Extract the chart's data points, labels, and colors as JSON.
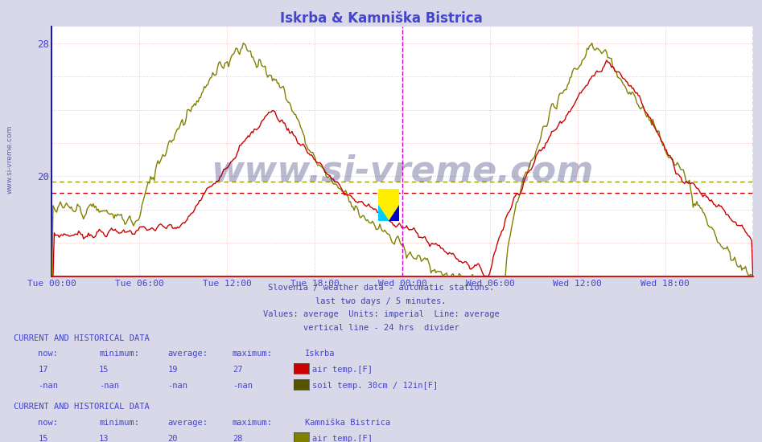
{
  "title": "Iskrba & Kamniška Bistrica",
  "title_color": "#4444cc",
  "bg_color": "#d8d8e8",
  "plot_bg_color": "#ffffff",
  "ylabel_color": "#4444cc",
  "xlabel_color": "#4444cc",
  "xtick_labels": [
    "Tue 00:00",
    "Tue 06:00",
    "Tue 12:00",
    "Tue 18:00",
    "Wed 00:00",
    "Wed 06:00",
    "Wed 12:00",
    "Wed 18:00"
  ],
  "iskrba_air_color": "#cc0000",
  "iskrba_soil_color": "#555500",
  "kamniska_air_color": "#808000",
  "kamniska_soil_color": "#888820",
  "avg_iskrba_color": "#cc0000",
  "avg_kamniska_color": "#999900",
  "divider_color": "#cc00cc",
  "watermark_color": "#1a1a66",
  "watermark_alpha": 0.3,
  "ylim_low": 14.0,
  "ylim_high": 29.0,
  "iskrba_avg": 19.0,
  "kamniska_avg": 19.7,
  "subtitle_lines": [
    "Slovenia / weather data - automatic stations.",
    "last two days / 5 minutes.",
    "Values: average  Units: imperial  Line: average",
    "vertical line - 24 hrs  divider"
  ],
  "iskrba_now": "17",
  "iskrba_min": "15",
  "iskrba_avg_label": "19",
  "iskrba_max": "27",
  "kb_now": "15",
  "kb_min": "13",
  "kb_avg_label": "20",
  "kb_max": "28"
}
